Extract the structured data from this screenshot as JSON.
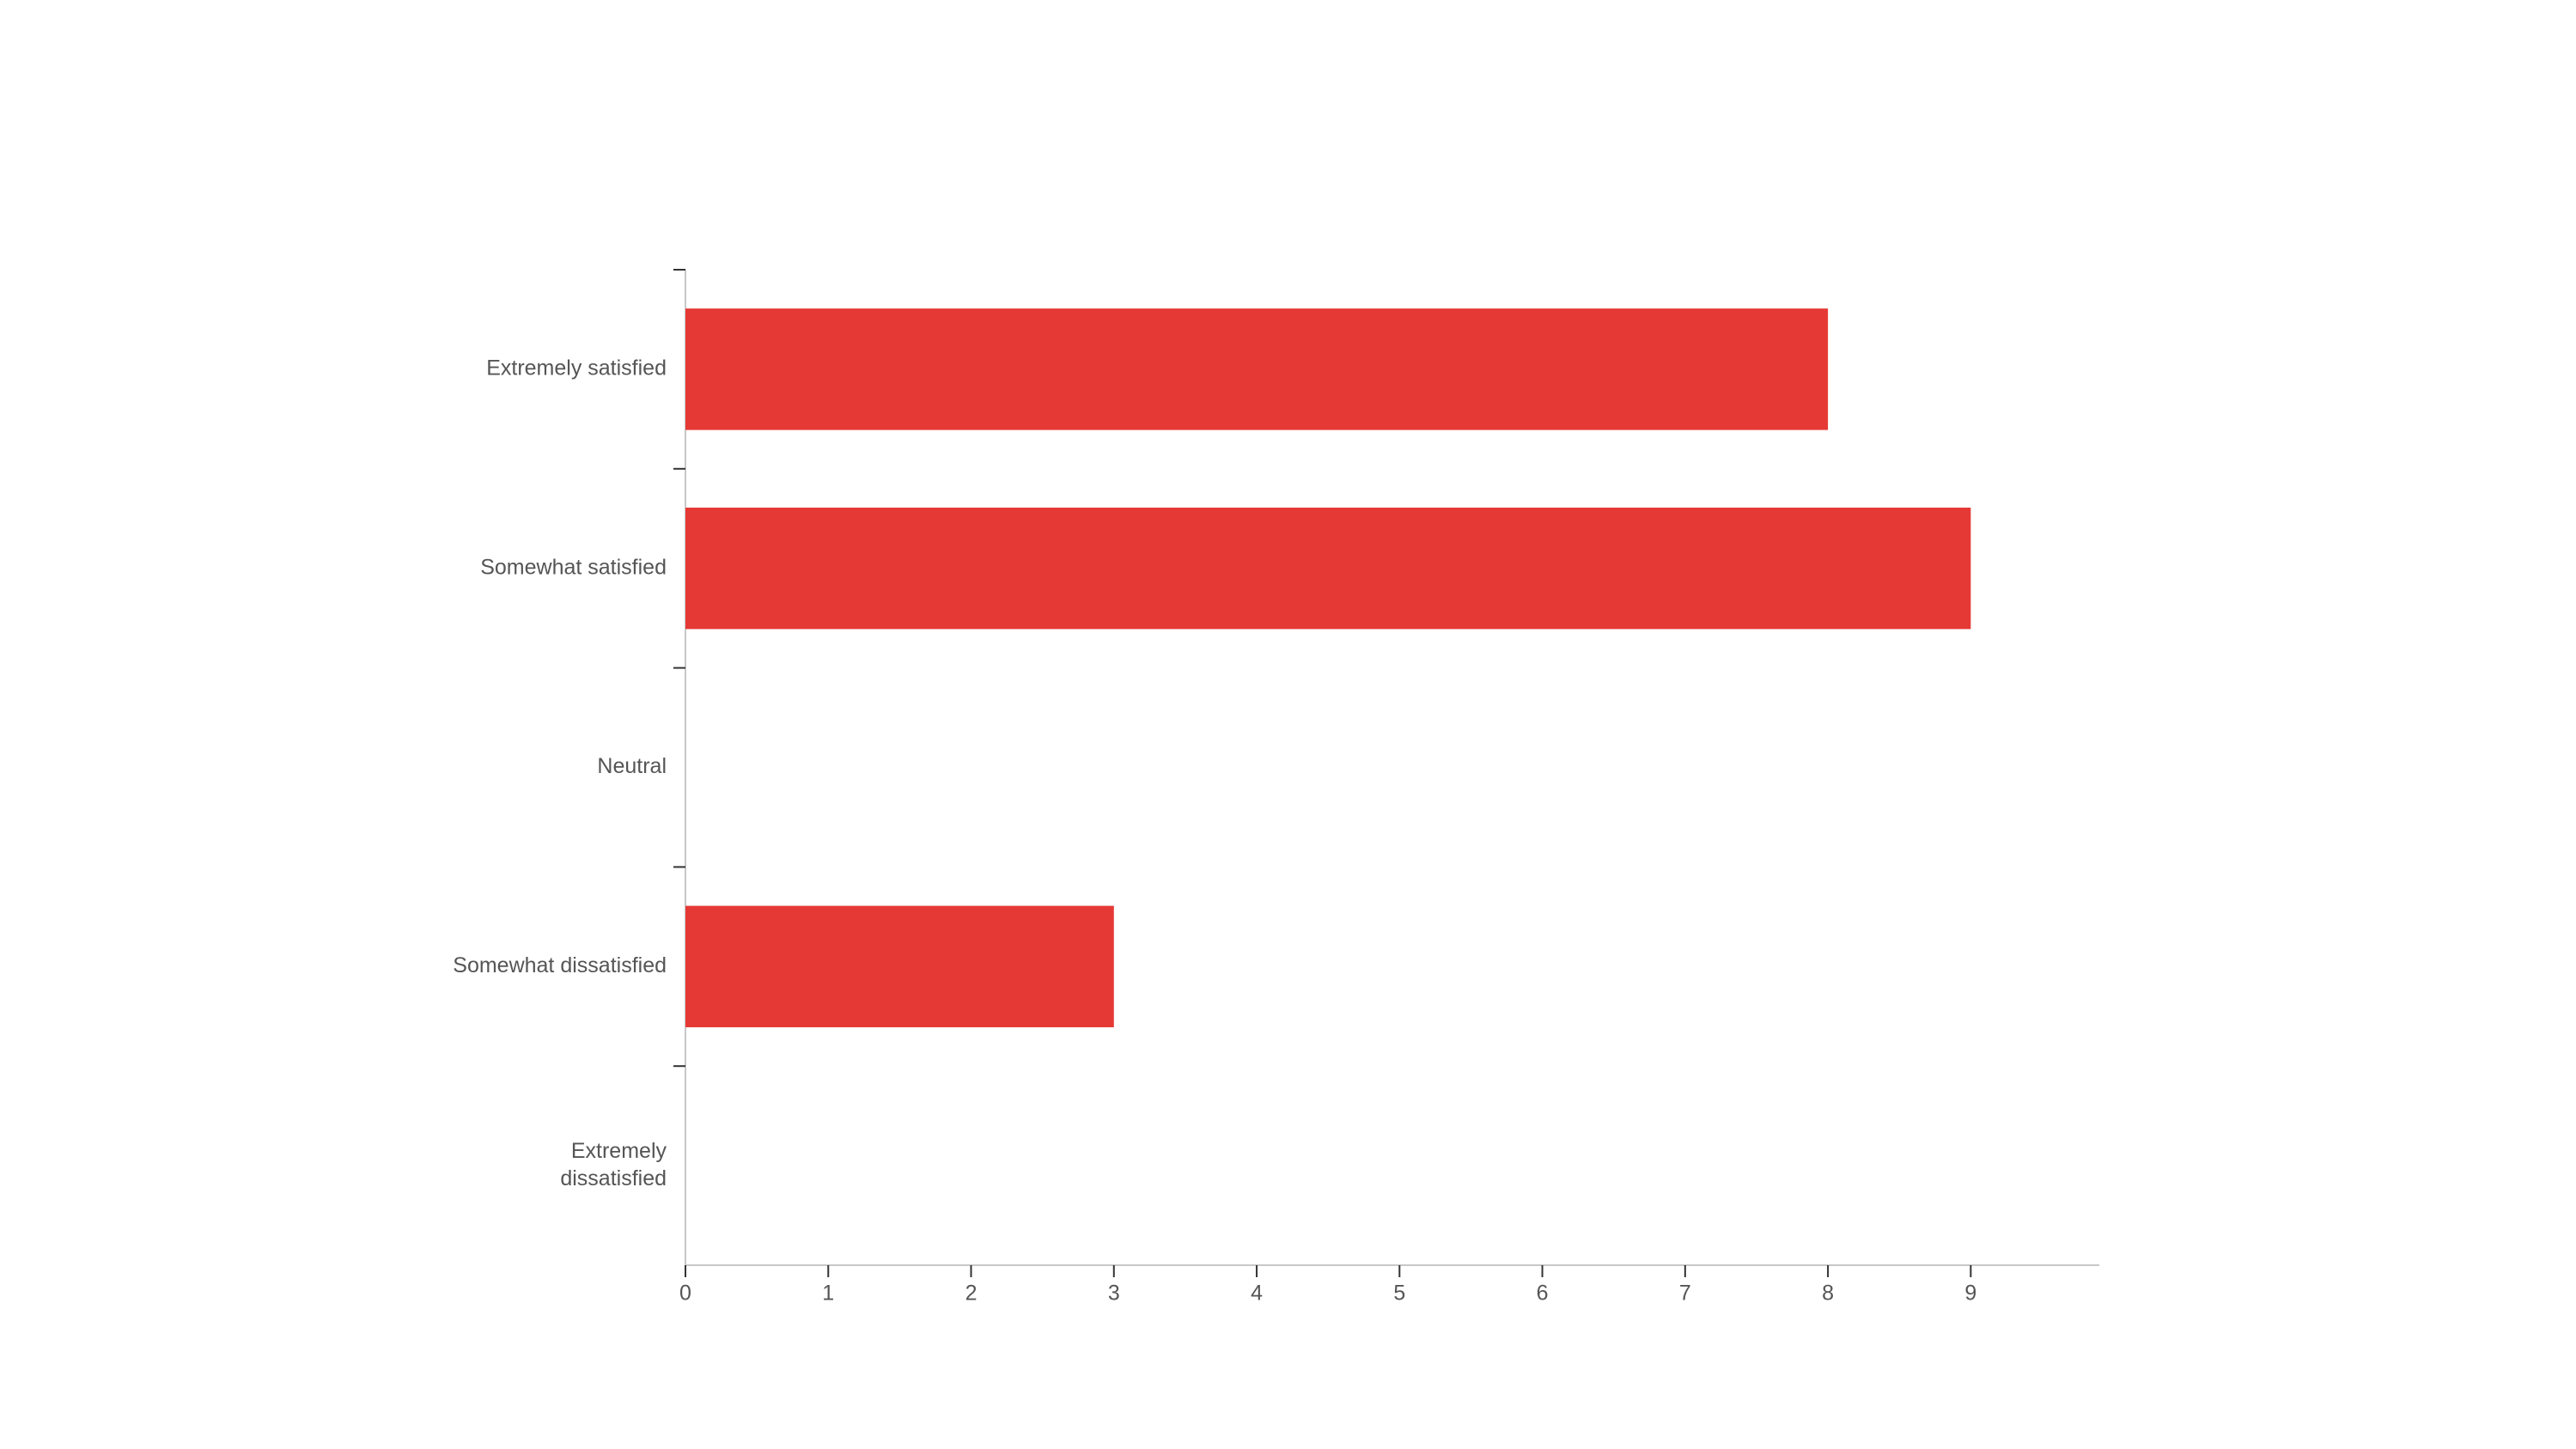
{
  "chart_data": {
    "type": "bar",
    "orientation": "horizontal",
    "categories": [
      "Extremely satisfied",
      "Somewhat satisfied",
      "Neutral",
      "Somewhat dissatisfied",
      "Extremely dissatisfied"
    ],
    "values": [
      8,
      9,
      0,
      3,
      0
    ],
    "color": "#e53935",
    "xlim": [
      0,
      9.9
    ],
    "xticks": [
      0,
      1,
      2,
      3,
      4,
      5,
      6,
      7,
      8,
      9
    ]
  }
}
